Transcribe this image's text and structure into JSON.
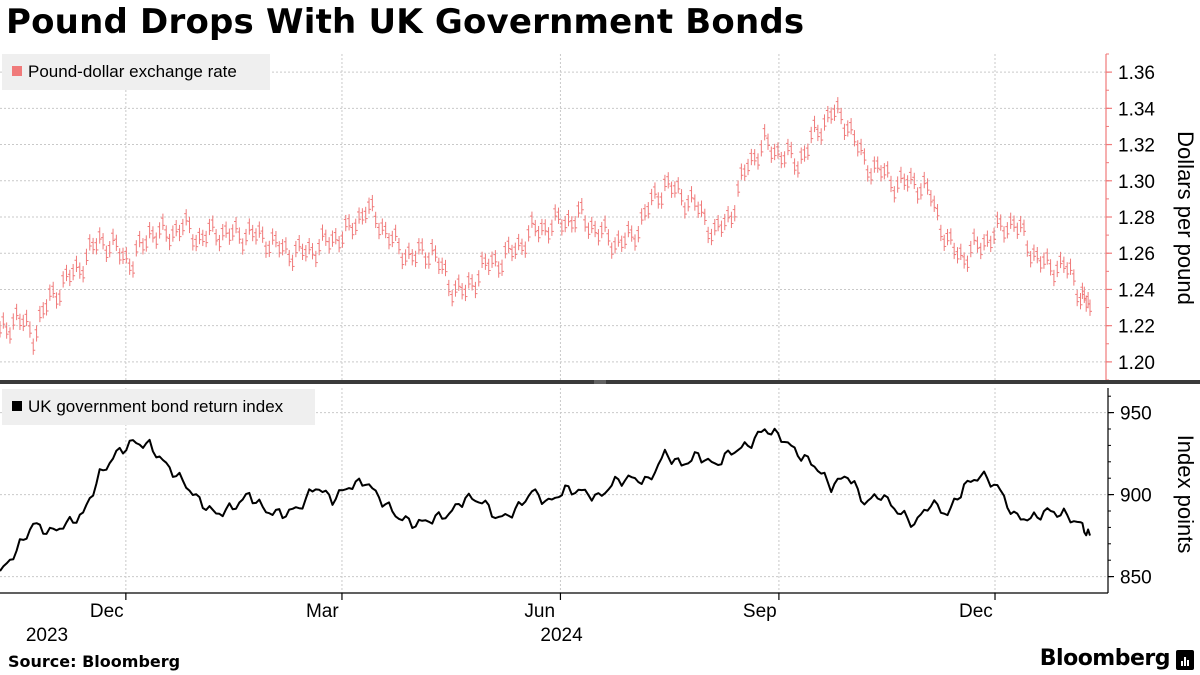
{
  "title": "Pound Drops With UK Government Bonds",
  "source": "Source: Bloomberg",
  "brand": "Bloomberg",
  "colors": {
    "fx": "#f07a7a",
    "bond": "#000000",
    "grid": "#c9c9c9",
    "fx_axis": "#f07a7a"
  },
  "chart_data": [
    {
      "type": "line",
      "style": "ohlc",
      "series": [
        {
          "name": "Pound-dollar exchange rate",
          "x": [
            "2023-10-09",
            "2023-10-16",
            "2023-10-23",
            "2023-10-30",
            "2023-11-06",
            "2023-11-13",
            "2023-11-20",
            "2023-11-27",
            "2023-12-04",
            "2023-12-11",
            "2023-12-18",
            "2023-12-25",
            "2024-01-01",
            "2024-01-08",
            "2024-01-15",
            "2024-01-22",
            "2024-01-29",
            "2024-02-05",
            "2024-02-12",
            "2024-02-19",
            "2024-02-26",
            "2024-03-04",
            "2024-03-11",
            "2024-03-18",
            "2024-03-25",
            "2024-04-01",
            "2024-04-08",
            "2024-04-15",
            "2024-04-22",
            "2024-04-29",
            "2024-05-06",
            "2024-05-13",
            "2024-05-20",
            "2024-05-27",
            "2024-06-03",
            "2024-06-10",
            "2024-06-17",
            "2024-06-24",
            "2024-07-01",
            "2024-07-08",
            "2024-07-15",
            "2024-07-22",
            "2024-07-29",
            "2024-08-05",
            "2024-08-12",
            "2024-08-19",
            "2024-08-26",
            "2024-09-02",
            "2024-09-09",
            "2024-09-16",
            "2024-09-23",
            "2024-09-30",
            "2024-10-07",
            "2024-10-14",
            "2024-10-21",
            "2024-10-28",
            "2024-11-04",
            "2024-11-11",
            "2024-11-18",
            "2024-11-25",
            "2024-12-02",
            "2024-12-09",
            "2024-12-16",
            "2024-12-23",
            "2024-12-30",
            "2025-01-06",
            "2025-01-10"
          ],
          "values": [
            1.215,
            1.225,
            1.215,
            1.235,
            1.245,
            1.255,
            1.268,
            1.262,
            1.255,
            1.272,
            1.27,
            1.275,
            1.268,
            1.272,
            1.27,
            1.271,
            1.268,
            1.262,
            1.26,
            1.263,
            1.268,
            1.272,
            1.285,
            1.275,
            1.262,
            1.258,
            1.262,
            1.243,
            1.238,
            1.252,
            1.256,
            1.262,
            1.272,
            1.275,
            1.278,
            1.28,
            1.272,
            1.266,
            1.268,
            1.285,
            1.298,
            1.292,
            1.285,
            1.27,
            1.282,
            1.31,
            1.32,
            1.315,
            1.31,
            1.325,
            1.338,
            1.332,
            1.31,
            1.305,
            1.298,
            1.3,
            1.292,
            1.265,
            1.258,
            1.265,
            1.272,
            1.278,
            1.262,
            1.252,
            1.254,
            1.238,
            1.23
          ]
        }
      ],
      "ylabel": "Dollars per pound",
      "ylim": [
        1.19,
        1.37
      ],
      "yticks": [
        "1.20",
        "1.22",
        "1.24",
        "1.26",
        "1.28",
        "1.30",
        "1.32",
        "1.34",
        "1.36"
      ],
      "grid": true,
      "legend": "top-left"
    },
    {
      "type": "line",
      "series": [
        {
          "name": "UK government bond return index",
          "x": [
            "2023-10-09",
            "2023-10-16",
            "2023-10-23",
            "2023-10-30",
            "2023-11-06",
            "2023-11-13",
            "2023-11-20",
            "2023-11-27",
            "2023-12-04",
            "2023-12-11",
            "2023-12-18",
            "2023-12-25",
            "2024-01-01",
            "2024-01-08",
            "2024-01-15",
            "2024-01-22",
            "2024-01-29",
            "2024-02-05",
            "2024-02-12",
            "2024-02-19",
            "2024-02-26",
            "2024-03-04",
            "2024-03-11",
            "2024-03-18",
            "2024-03-25",
            "2024-04-01",
            "2024-04-08",
            "2024-04-15",
            "2024-04-22",
            "2024-04-29",
            "2024-05-06",
            "2024-05-13",
            "2024-05-20",
            "2024-05-27",
            "2024-06-03",
            "2024-06-10",
            "2024-06-17",
            "2024-06-24",
            "2024-07-01",
            "2024-07-08",
            "2024-07-15",
            "2024-07-22",
            "2024-07-29",
            "2024-08-05",
            "2024-08-12",
            "2024-08-19",
            "2024-08-26",
            "2024-09-02",
            "2024-09-09",
            "2024-09-16",
            "2024-09-23",
            "2024-09-30",
            "2024-10-07",
            "2024-10-14",
            "2024-10-21",
            "2024-10-28",
            "2024-11-04",
            "2024-11-11",
            "2024-11-18",
            "2024-11-25",
            "2024-12-02",
            "2024-12-09",
            "2024-12-16",
            "2024-12-23",
            "2024-12-30",
            "2025-01-06",
            "2025-01-10"
          ],
          "values": [
            852,
            866,
            882,
            877,
            882,
            888,
            912,
            925,
            932,
            930,
            918,
            908,
            896,
            888,
            892,
            900,
            890,
            888,
            892,
            905,
            897,
            905,
            908,
            896,
            886,
            882,
            885,
            888,
            898,
            896,
            885,
            890,
            902,
            895,
            903,
            902,
            898,
            908,
            910,
            908,
            925,
            918,
            924,
            918,
            926,
            930,
            940,
            935,
            925,
            918,
            905,
            912,
            895,
            900,
            890,
            882,
            895,
            888,
            905,
            912,
            905,
            887,
            885,
            890,
            888,
            882,
            875
          ]
        }
      ],
      "ylabel": "Index points",
      "ylim": [
        840,
        965
      ],
      "yticks": [
        "850",
        "900",
        "950"
      ],
      "xticks": [
        "Dec",
        "Mar",
        "Jun",
        "Sep",
        "Dec"
      ],
      "xtick_years": [
        "2023",
        "2024"
      ],
      "grid": true,
      "legend": "top-left"
    }
  ]
}
